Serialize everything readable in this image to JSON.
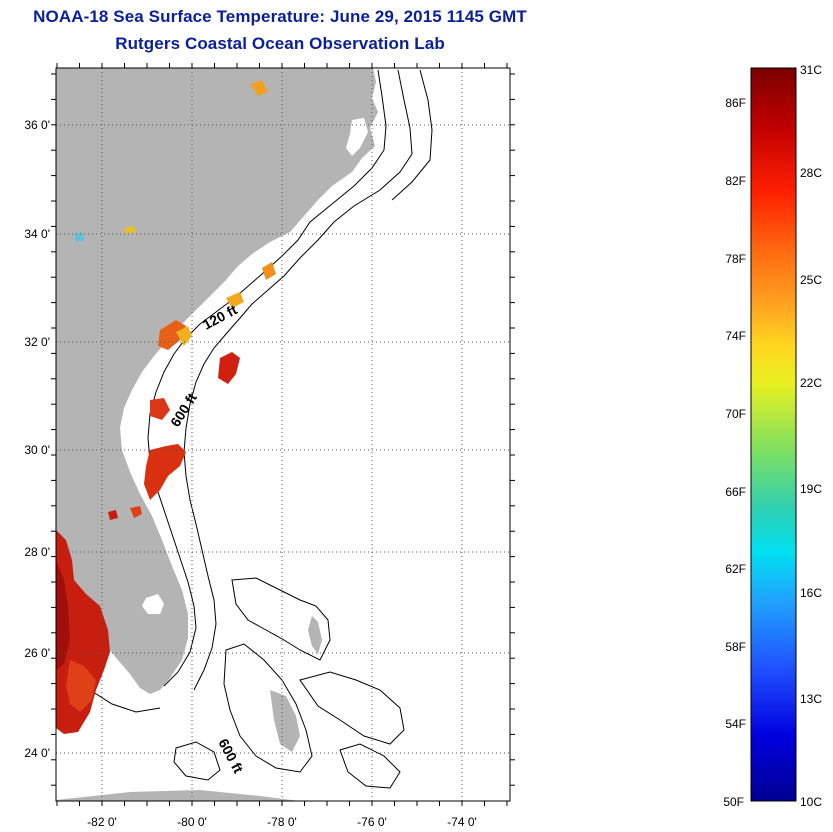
{
  "header": {
    "title": "NOAA-18 Sea Surface Temperature:  June 29, 2015 1145 GMT",
    "subtitle": "Rutgers Coastal Ocean Observation Lab"
  },
  "map": {
    "lat_labels": [
      "36 0'",
      "34 0'",
      "32 0'",
      "30 0'",
      "28 0'",
      "26 0'",
      "24 0'"
    ],
    "lon_labels": [
      "-82 0'",
      "-80 0'",
      "-78 0'",
      "-76 0'",
      "-74 0'"
    ],
    "contour_labels": {
      "shelf_120": "120 ft",
      "shelf_600": "600 ft",
      "bahamas_600": "600 ft"
    },
    "colors": {
      "land": "#b4b4b4",
      "contour": "#000000",
      "warm_sst": "#c81e10",
      "grid": "#555555"
    }
  },
  "colorbar": {
    "fahrenheit_labels": [
      "86F",
      "82F",
      "78F",
      "74F",
      "70F",
      "66F",
      "62F",
      "58F",
      "54F",
      "50F"
    ],
    "celsius_labels": [
      "31C",
      "28C",
      "25C",
      "22C",
      "19C",
      "16C",
      "13C",
      "10C"
    ],
    "colors": [
      "#7a0000",
      "#c80000",
      "#ff2a00",
      "#ff7a10",
      "#ffb020",
      "#ffe020",
      "#d8f030",
      "#80e060",
      "#30d0b0",
      "#00e0f0",
      "#20a0ff",
      "#2050ff",
      "#0000e0",
      "#000090"
    ]
  }
}
